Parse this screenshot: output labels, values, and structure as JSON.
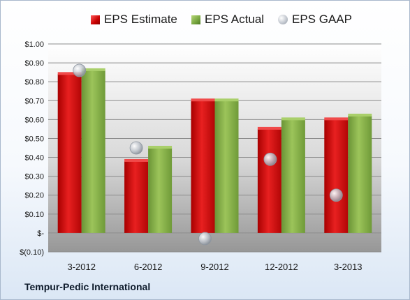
{
  "company": "Tempur-Pedic International",
  "legend": {
    "estimate": "EPS Estimate",
    "actual": "EPS Actual",
    "gaap": "EPS GAAP"
  },
  "colors": {
    "estimate": "#d01818",
    "actual": "#8ab34a",
    "gaap": "#b8bec7",
    "plot_top": "#ffffff",
    "plot_bottom": "#9a9a9a"
  },
  "chart_data": {
    "type": "bar",
    "categories": [
      "3-2012",
      "6-2012",
      "9-2012",
      "12-2012",
      "3-2013"
    ],
    "series": [
      {
        "name": "EPS Estimate",
        "values": [
          0.84,
          0.38,
          0.7,
          0.55,
          0.6
        ]
      },
      {
        "name": "EPS Actual",
        "values": [
          0.86,
          0.45,
          0.7,
          0.6,
          0.62
        ]
      },
      {
        "name": "EPS GAAP",
        "marker": "bubble",
        "values": [
          0.86,
          0.45,
          -0.03,
          0.39,
          0.2
        ]
      }
    ],
    "ylim": [
      -0.1,
      1.0
    ],
    "ytick_values": [
      1.0,
      0.9,
      0.8,
      0.7,
      0.6,
      0.5,
      0.4,
      0.3,
      0.2,
      0.1,
      0.0,
      -0.1
    ],
    "ytick_labels": [
      "$1.00",
      "$0.90",
      "$0.80",
      "$0.70",
      "$0.60",
      "$0.50",
      "$0.40",
      "$0.30",
      "$0.20",
      "$0.10",
      "$-",
      "$(0.10)"
    ],
    "grid": true,
    "legend_position": "top"
  }
}
